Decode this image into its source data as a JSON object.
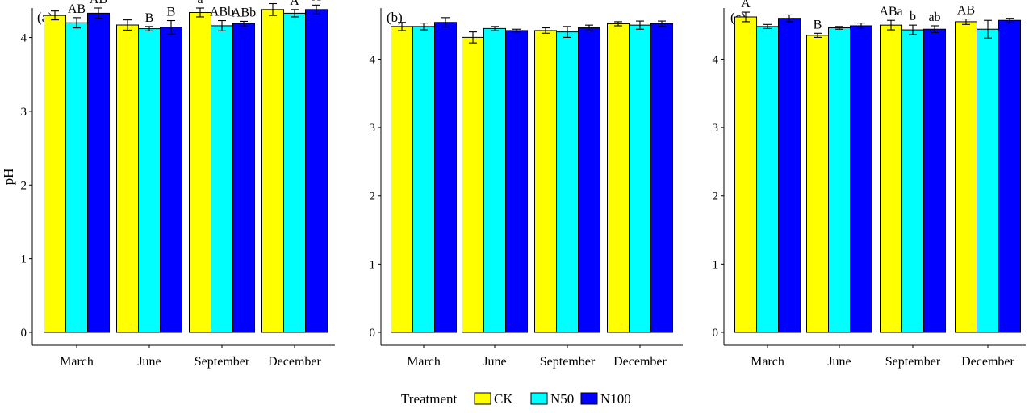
{
  "legend": {
    "title": "Treatment",
    "position": "bottom-center",
    "entries": [
      {
        "name": "CK",
        "color": "#ffff00"
      },
      {
        "name": "N50",
        "color": "#00ffff"
      },
      {
        "name": "N100",
        "color": "#0000ff"
      }
    ]
  },
  "chart_data": [
    {
      "type": "bar",
      "panel_label": "(a)",
      "ylabel": "pH",
      "xlabel": "",
      "ylim": [
        0,
        4.4
      ],
      "yticks": [
        0,
        1,
        2,
        3,
        4
      ],
      "grid": false,
      "categories": [
        "March",
        "June",
        "September",
        "December"
      ],
      "series": [
        {
          "name": "CK",
          "values": [
            4.3,
            4.17,
            4.34,
            4.38
          ],
          "errors": [
            0.06,
            0.07,
            0.06,
            0.08
          ],
          "labels": [
            "",
            "",
            "a",
            ""
          ]
        },
        {
          "name": "N50",
          "values": [
            4.2,
            4.12,
            4.16,
            4.33
          ],
          "errors": [
            0.07,
            0.03,
            0.07,
            0.05
          ],
          "labels": [
            "AB",
            "B",
            "ABb",
            "A"
          ]
        },
        {
          "name": "N100",
          "values": [
            4.33,
            4.14,
            4.19,
            4.38
          ],
          "errors": [
            0.07,
            0.09,
            0.03,
            0.06
          ],
          "labels": [
            "AB",
            "B",
            "ABb",
            "A"
          ]
        }
      ]
    },
    {
      "type": "bar",
      "panel_label": "(b)",
      "ylabel": "",
      "xlabel": "",
      "ylim": [
        0,
        4.75
      ],
      "yticks": [
        0,
        1,
        2,
        3,
        4
      ],
      "grid": false,
      "categories": [
        "March",
        "June",
        "September",
        "December"
      ],
      "series": [
        {
          "name": "CK",
          "values": [
            4.48,
            4.32,
            4.42,
            4.52
          ],
          "errors": [
            0.06,
            0.08,
            0.04,
            0.03
          ],
          "labels": [
            "",
            "",
            "",
            ""
          ]
        },
        {
          "name": "N50",
          "values": [
            4.48,
            4.45,
            4.4,
            4.5
          ],
          "errors": [
            0.05,
            0.03,
            0.08,
            0.06
          ],
          "labels": [
            "",
            "",
            "",
            ""
          ]
        },
        {
          "name": "N100",
          "values": [
            4.54,
            4.42,
            4.46,
            4.52
          ],
          "errors": [
            0.07,
            0.02,
            0.04,
            0.04
          ],
          "labels": [
            "",
            "",
            "",
            ""
          ]
        }
      ]
    },
    {
      "type": "bar",
      "panel_label": "(c)",
      "ylabel": "",
      "xlabel": "",
      "ylim": [
        0,
        4.75
      ],
      "yticks": [
        0,
        1,
        2,
        3,
        4
      ],
      "grid": false,
      "categories": [
        "March",
        "June",
        "September",
        "December"
      ],
      "series": [
        {
          "name": "CK",
          "values": [
            4.62,
            4.35,
            4.5,
            4.55
          ],
          "errors": [
            0.07,
            0.03,
            0.07,
            0.04
          ],
          "labels": [
            "A",
            "B",
            "ABa",
            "AB"
          ]
        },
        {
          "name": "N50",
          "values": [
            4.48,
            4.46,
            4.43,
            4.44
          ],
          "errors": [
            0.03,
            0.02,
            0.07,
            0.13
          ],
          "labels": [
            "",
            "",
            "b",
            ""
          ]
        },
        {
          "name": "N100",
          "values": [
            4.6,
            4.49,
            4.44,
            4.57
          ],
          "errors": [
            0.05,
            0.04,
            0.05,
            0.03
          ],
          "labels": [
            "",
            "",
            "ab",
            ""
          ]
        }
      ]
    }
  ]
}
